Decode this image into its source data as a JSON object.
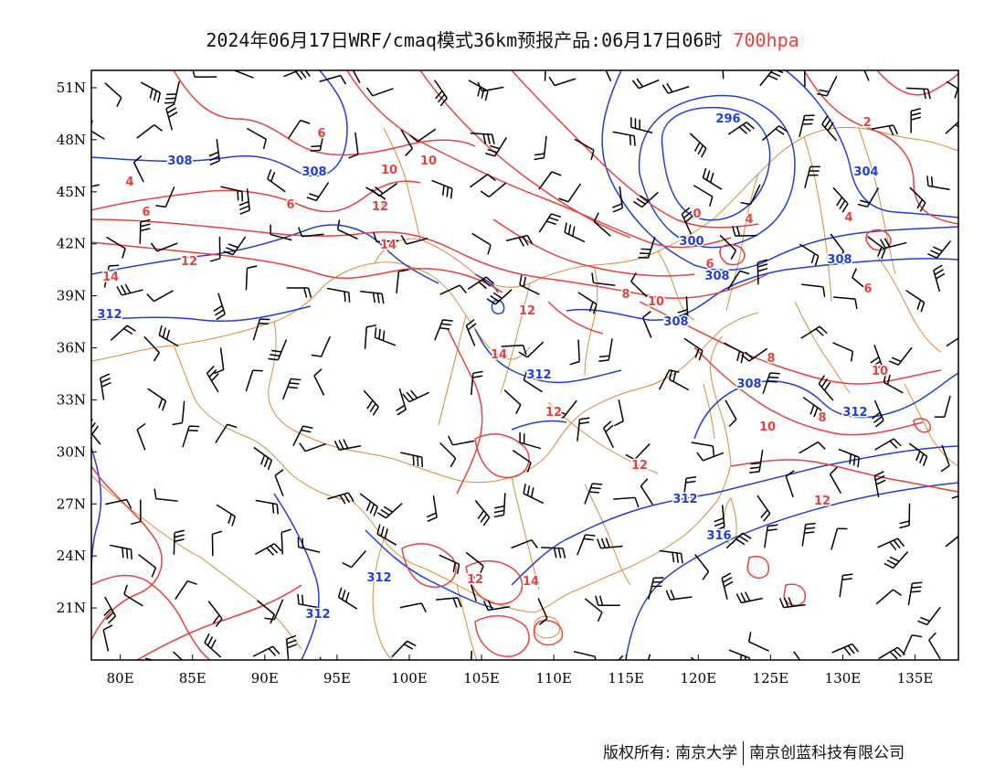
{
  "header": {
    "title_main": "2024年06月17日WRF/cmaq模式36km预报产品:06月17日06时",
    "title_level": "700hpa"
  },
  "colors": {
    "contour_temp": "#e8413f",
    "contour_height": "#1f3fd6",
    "wind_barb": "#000000",
    "boundary": "#d98b3a",
    "frame": "#000000"
  },
  "map": {
    "lon_range": [
      78,
      138
    ],
    "lat_range": [
      18,
      52
    ],
    "lon_ticks": [
      80,
      85,
      90,
      95,
      100,
      105,
      110,
      115,
      120,
      125,
      130,
      135
    ],
    "lat_ticks": [
      21,
      24,
      27,
      30,
      33,
      36,
      39,
      42,
      45,
      48,
      51
    ],
    "lon_tick_labels": [
      "80E",
      "85E",
      "90E",
      "95E",
      "100E",
      "105E",
      "110E",
      "115E",
      "120E",
      "125E",
      "130E",
      "135E"
    ],
    "lat_tick_labels": [
      "21N",
      "24N",
      "27N",
      "30N",
      "33N",
      "36N",
      "39N",
      "42N",
      "45N",
      "48N",
      "51N"
    ]
  },
  "height_labels": [
    "296",
    "300",
    "304",
    "308",
    "308",
    "308",
    "308",
    "308",
    "308",
    "312",
    "312",
    "312",
    "312",
    "312",
    "312",
    "316"
  ],
  "temp_labels": [
    "0",
    "2",
    "4",
    "4",
    "4",
    "6",
    "6",
    "6",
    "6",
    "6",
    "8",
    "8",
    "8",
    "10",
    "10",
    "10",
    "10",
    "10",
    "12",
    "12",
    "12",
    "12",
    "12",
    "12",
    "12",
    "14",
    "14",
    "14",
    "14"
  ],
  "footer": {
    "copyright_label": "版权所有: 南京大学",
    "company": "南京创蓝科技有限公司"
  }
}
